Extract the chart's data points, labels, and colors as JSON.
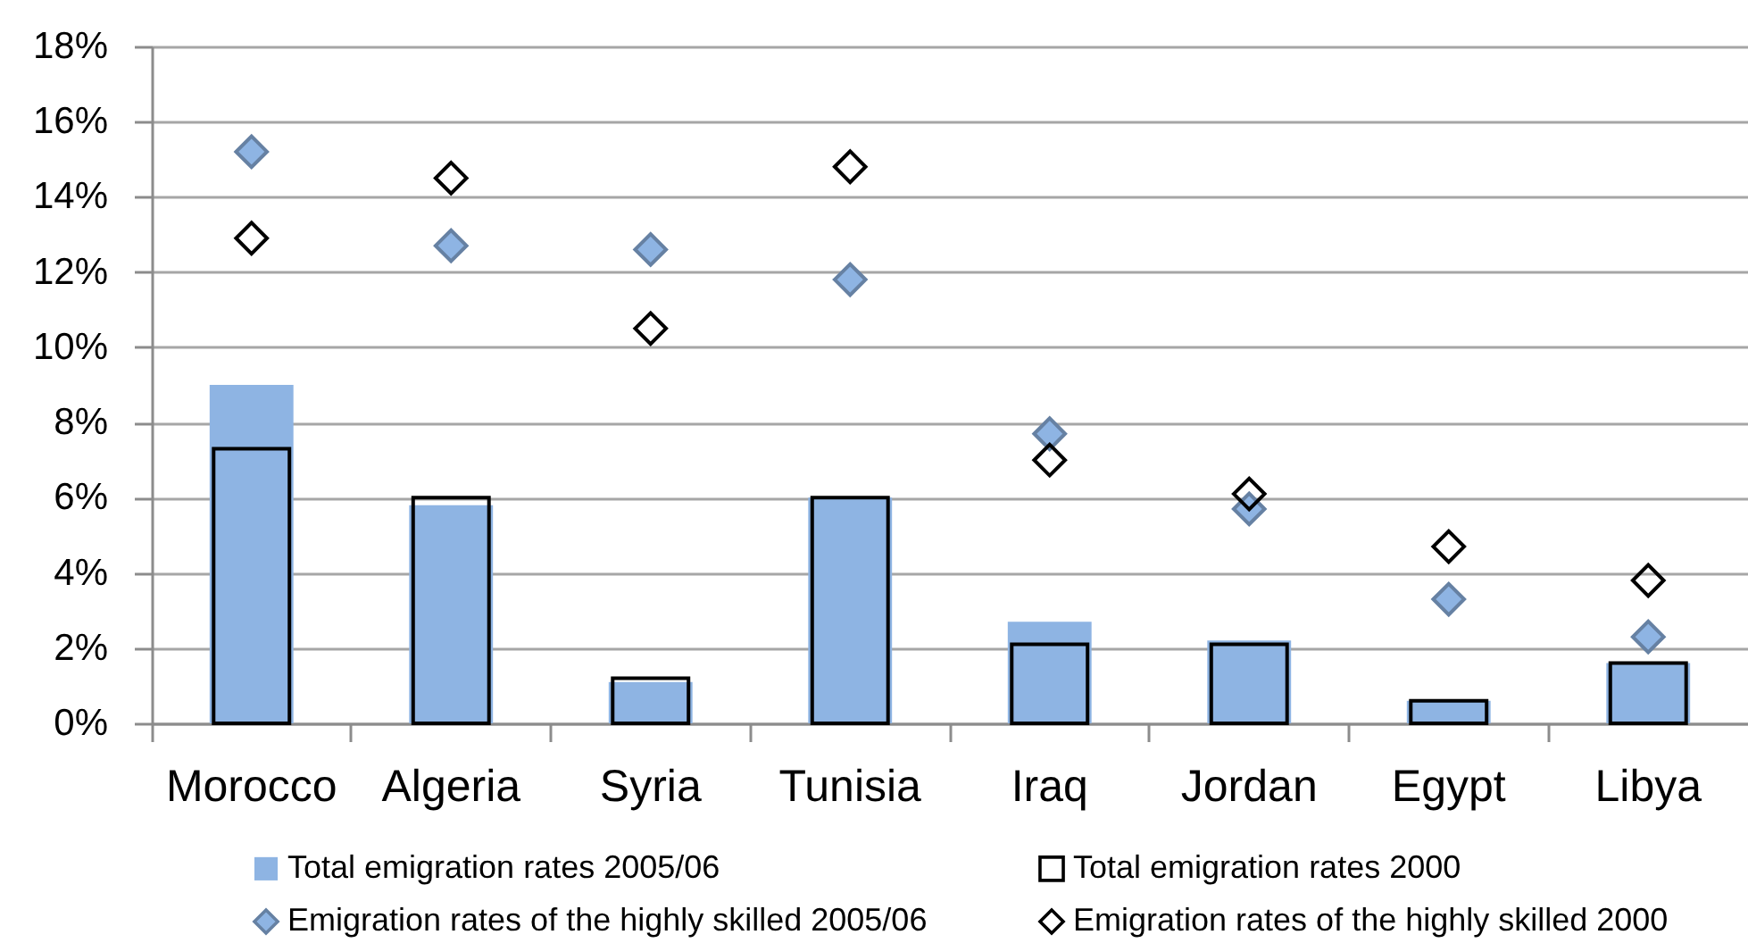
{
  "chart_data": {
    "type": "bar",
    "categories": [
      "Morocco",
      "Algeria",
      "Syria",
      "Tunisia",
      "Iraq",
      "Jordan",
      "Egypt",
      "Libya"
    ],
    "series": [
      {
        "name": "Total emigration rates 2005/06",
        "color": "#8eb4e3",
        "values": [
          9.0,
          5.8,
          1.1,
          6.0,
          2.7,
          2.2,
          0.6,
          1.6
        ]
      },
      {
        "name": "Total emigration rates 2000",
        "color": "#000000",
        "values": [
          7.3,
          6.0,
          1.2,
          6.0,
          2.1,
          2.1,
          0.6,
          1.6
        ]
      },
      {
        "name": "Emigration rates of the highly skilled 2005/06",
        "type": "scatter",
        "marker": "diamond",
        "color": "#8eb4e3",
        "values": [
          15.2,
          12.7,
          12.6,
          11.8,
          7.7,
          5.7,
          3.3,
          2.3
        ]
      },
      {
        "name": "Emigration rates of the highly skilled 2000",
        "type": "scatter",
        "marker": "diamond",
        "color": "#000000",
        "values": [
          12.9,
          14.5,
          10.5,
          14.8,
          7.0,
          6.1,
          4.7,
          3.8
        ]
      }
    ],
    "ylim": [
      0,
      18
    ],
    "yticks": [
      {
        "value": 0,
        "label": "0%"
      },
      {
        "value": 2,
        "label": "2%"
      },
      {
        "value": 4,
        "label": "4%"
      },
      {
        "value": 6,
        "label": "6%"
      },
      {
        "value": 8,
        "label": "8%"
      },
      {
        "value": 10,
        "label": "10%"
      },
      {
        "value": 12,
        "label": "12%"
      },
      {
        "value": 14,
        "label": "14%"
      },
      {
        "value": 16,
        "label": "16%"
      },
      {
        "value": 18,
        "label": "18%"
      }
    ],
    "grid": "y",
    "legend": "bottom"
  }
}
